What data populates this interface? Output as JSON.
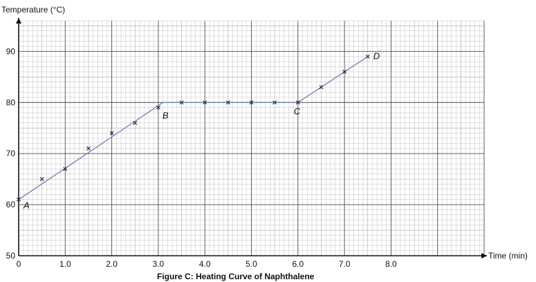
{
  "chart_data": {
    "type": "line",
    "title": "",
    "caption": "Figure C: Heating Curve of Naphthalene",
    "xlabel": "Time (min)",
    "ylabel": "Temperature (°C)",
    "xlim": [
      0,
      10
    ],
    "ylim": [
      50,
      96
    ],
    "x_ticks": [
      0,
      1.0,
      2.0,
      3.0,
      4.0,
      5.0,
      6.0,
      7.0,
      8.0
    ],
    "x_tick_labels": [
      "0",
      "1.0",
      "2.0",
      "3.0",
      "4.0",
      "5.0",
      "6.0",
      "7.0",
      "8.0"
    ],
    "y_ticks": [
      50,
      60,
      70,
      80,
      90
    ],
    "y_tick_labels": [
      "50",
      "60",
      "70",
      "80",
      "90"
    ],
    "grid": true,
    "legend": "none",
    "series": [
      {
        "marker": "x",
        "x": [
          0,
          0.5,
          1.0,
          1.5,
          2.0,
          2.5,
          3.0,
          3.5,
          4.0,
          4.5,
          5.0,
          5.5,
          6.0,
          6.5,
          7.0,
          7.5
        ],
        "y": [
          61,
          65,
          67,
          71,
          74,
          76,
          79,
          80,
          80,
          80,
          80,
          80,
          80,
          83,
          86,
          89
        ]
      }
    ],
    "line": {
      "x": [
        0,
        3.1,
        6.0,
        7.5
      ],
      "y": [
        61,
        80,
        80,
        89
      ]
    },
    "point_labels": [
      {
        "text": "A",
        "x": 0,
        "y": 61
      },
      {
        "text": "B",
        "x": 3.0,
        "y": 79
      },
      {
        "text": "C",
        "x": 6.0,
        "y": 80
      },
      {
        "text": "D",
        "x": 7.5,
        "y": 89
      }
    ],
    "colors": {
      "line": "#6b7fb8",
      "marker": "#222222",
      "grid_major": "#4a4a4a",
      "grid_minor": "#a8a8a8",
      "axis": "#111111"
    }
  }
}
